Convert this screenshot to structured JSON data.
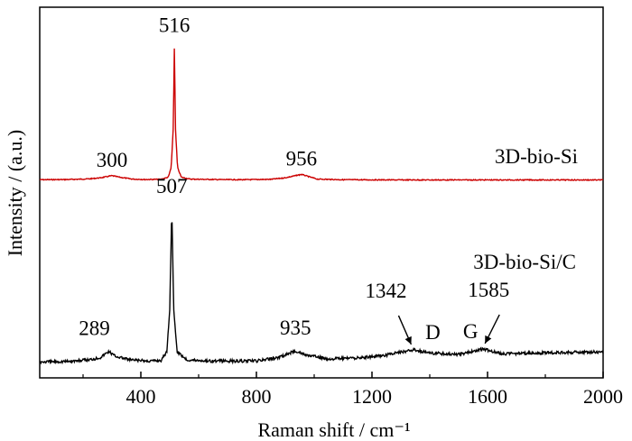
{
  "chart_data": {
    "type": "line",
    "xlabel": "Raman shift / cm⁻¹",
    "ylabel": "Intensity / (a.u.)",
    "xlim": [
      50,
      2000
    ],
    "x_ticks": [
      400,
      800,
      1200,
      1600,
      2000
    ],
    "y_ticks_shown": false,
    "grid": false,
    "series": [
      {
        "name": "3D-bio-Si",
        "color": "#cc0000",
        "points": [
          [
            50,
            0.03
          ],
          [
            150,
            0.04
          ],
          [
            220,
            0.07
          ],
          [
            260,
            0.12
          ],
          [
            300,
            0.22
          ],
          [
            330,
            0.14
          ],
          [
            370,
            0.06
          ],
          [
            420,
            0.04
          ],
          [
            470,
            0.05
          ],
          [
            495,
            0.15
          ],
          [
            505,
            0.6
          ],
          [
            512,
            2.4
          ],
          [
            516,
            6.2
          ],
          [
            520,
            2.4
          ],
          [
            527,
            0.6
          ],
          [
            540,
            0.15
          ],
          [
            570,
            0.06
          ],
          [
            650,
            0.04
          ],
          [
            750,
            0.03
          ],
          [
            850,
            0.05
          ],
          [
            900,
            0.12
          ],
          [
            935,
            0.22
          ],
          [
            956,
            0.28
          ],
          [
            980,
            0.18
          ],
          [
            1010,
            0.06
          ],
          [
            1100,
            0.03
          ],
          [
            1300,
            0.02
          ],
          [
            1600,
            0.02
          ],
          [
            2000,
            0.02
          ]
        ]
      },
      {
        "name": "3D-bio-Si/C",
        "color": "#000000",
        "points": [
          [
            50,
            0.05
          ],
          [
            150,
            0.07
          ],
          [
            220,
            0.12
          ],
          [
            260,
            0.2
          ],
          [
            289,
            0.4
          ],
          [
            310,
            0.25
          ],
          [
            360,
            0.12
          ],
          [
            420,
            0.08
          ],
          [
            470,
            0.1
          ],
          [
            490,
            0.4
          ],
          [
            500,
            1.8
          ],
          [
            507,
            5.1
          ],
          [
            514,
            1.8
          ],
          [
            525,
            0.4
          ],
          [
            560,
            0.12
          ],
          [
            650,
            0.08
          ],
          [
            800,
            0.08
          ],
          [
            880,
            0.2
          ],
          [
            935,
            0.42
          ],
          [
            970,
            0.28
          ],
          [
            1050,
            0.15
          ],
          [
            1150,
            0.18
          ],
          [
            1250,
            0.28
          ],
          [
            1342,
            0.45
          ],
          [
            1400,
            0.35
          ],
          [
            1500,
            0.3
          ],
          [
            1585,
            0.48
          ],
          [
            1650,
            0.32
          ],
          [
            1800,
            0.35
          ],
          [
            2000,
            0.38
          ]
        ]
      }
    ],
    "annotations": [
      {
        "text": "516",
        "series": "3D-bio-Si",
        "x": 516
      },
      {
        "text": "300",
        "series": "3D-bio-Si",
        "x": 300
      },
      {
        "text": "956",
        "series": "3D-bio-Si",
        "x": 956
      },
      {
        "text": "507",
        "series": "3D-bio-Si/C",
        "x": 507
      },
      {
        "text": "289",
        "series": "3D-bio-Si/C",
        "x": 289
      },
      {
        "text": "935",
        "series": "3D-bio-Si/C",
        "x": 935
      },
      {
        "text": "1342",
        "series": "3D-bio-Si/C",
        "x": 1342
      },
      {
        "text": "1585",
        "series": "3D-bio-Si/C",
        "x": 1585
      },
      {
        "text": "D",
        "series": "3D-bio-Si/C",
        "x": 1342
      },
      {
        "text": "G",
        "series": "3D-bio-Si/C",
        "x": 1585
      }
    ],
    "series_labels": [
      "3D-bio-Si",
      "3D-bio-Si/C"
    ]
  }
}
